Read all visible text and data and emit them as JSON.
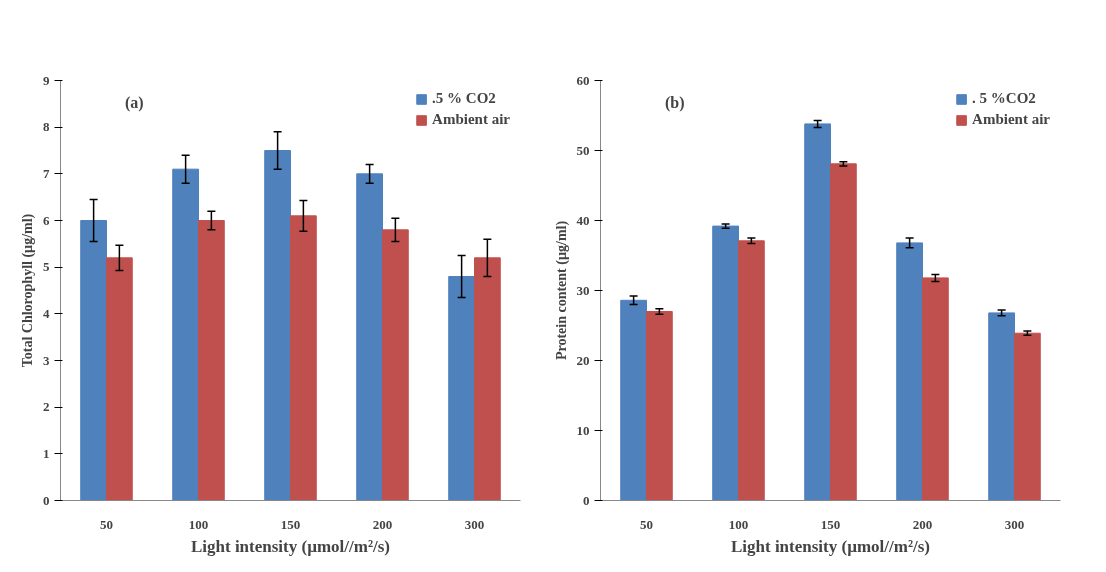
{
  "chart_data": [
    {
      "type": "bar",
      "annotations": [
        "(a)"
      ],
      "xlabel": "Light intensity (µmol//m²/s)",
      "ylabel": "Total Chlorophyll (µg/ml)",
      "categories": [
        "50",
        "100",
        "150",
        "200",
        "300"
      ],
      "series": [
        {
          "name": ".5 % CO2",
          "color": "#4f81bd",
          "values": [
            6.0,
            7.1,
            7.5,
            7.0,
            4.8
          ],
          "errors": [
            0.45,
            0.3,
            0.4,
            0.2,
            0.45
          ]
        },
        {
          "name": "Ambient air",
          "color": "#c0504d",
          "values": [
            5.2,
            6.0,
            6.1,
            5.8,
            5.2
          ],
          "errors": [
            0.27,
            0.2,
            0.33,
            0.25,
            0.4
          ]
        }
      ],
      "ylim": [
        0,
        9
      ],
      "yticks": [
        0,
        1,
        2,
        3,
        4,
        5,
        6,
        7,
        8,
        9
      ],
      "grid": false,
      "legend": "top right"
    },
    {
      "type": "bar",
      "annotations": [
        "(b)"
      ],
      "xlabel": "Light intensity (µmol//m²/s)",
      "ylabel": "Protein content (µg/ml)",
      "categories": [
        "50",
        "100",
        "150",
        "200",
        "300"
      ],
      "series": [
        {
          "name": ". 5 %CO2",
          "color": "#4f81bd",
          "values": [
            28.6,
            39.2,
            53.8,
            36.8,
            26.8
          ],
          "errors": [
            0.6,
            0.3,
            0.5,
            0.7,
            0.4
          ]
        },
        {
          "name": "Ambient air",
          "color": "#c0504d",
          "values": [
            27.0,
            37.1,
            48.1,
            31.8,
            23.9
          ],
          "errors": [
            0.4,
            0.4,
            0.3,
            0.5,
            0.3
          ]
        }
      ],
      "ylim": [
        0,
        60
      ],
      "yticks": [
        0,
        10,
        20,
        30,
        40,
        50,
        60
      ],
      "grid": false,
      "legend": "top right"
    }
  ]
}
